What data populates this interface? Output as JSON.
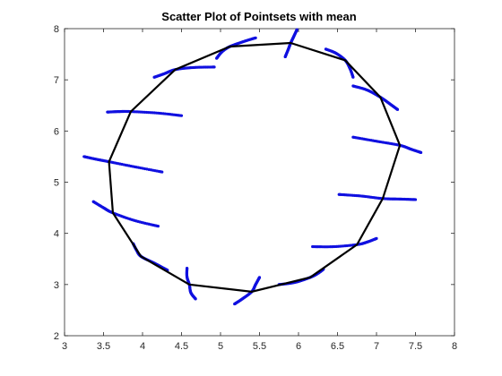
{
  "chart_data": {
    "type": "scatter",
    "title": "Scatter Plot of Pointsets with mean",
    "xlabel": "",
    "ylabel": "",
    "xlim": [
      3,
      8
    ],
    "ylim": [
      2,
      8
    ],
    "x_ticks": [
      3,
      3.5,
      4,
      4.5,
      5,
      5.5,
      6,
      6.5,
      7,
      7.5,
      8
    ],
    "x_tick_labels": [
      "3",
      "3.5",
      "4",
      "4.5",
      "5",
      "5.5",
      "6",
      "6.5",
      "7",
      "7.5",
      "8"
    ],
    "y_ticks": [
      2,
      3,
      4,
      5,
      6,
      7,
      8
    ],
    "y_tick_labels": [
      "2",
      "3",
      "4",
      "5",
      "6",
      "7",
      "8"
    ],
    "grid": false,
    "legend": "none",
    "colors": {
      "points": "#1010e0",
      "mean": "#000000",
      "axis": "#262626"
    },
    "mean_polygon": [
      [
        5.9,
        7.72
      ],
      [
        6.6,
        7.38
      ],
      [
        7.05,
        6.66
      ],
      [
        7.3,
        5.72
      ],
      [
        7.08,
        4.68
      ],
      [
        6.75,
        3.78
      ],
      [
        6.15,
        3.14
      ],
      [
        5.4,
        2.86
      ],
      [
        4.6,
        3.0
      ],
      [
        3.98,
        3.55
      ],
      [
        3.62,
        4.4
      ],
      [
        3.57,
        5.4
      ],
      [
        3.85,
        6.38
      ],
      [
        4.42,
        7.2
      ],
      [
        5.12,
        7.65
      ]
    ],
    "point_clusters": [
      {
        "points": [
          [
            5.83,
            7.45
          ],
          [
            5.87,
            7.6
          ],
          [
            5.9,
            7.72
          ],
          [
            5.94,
            7.85
          ],
          [
            5.98,
            7.98
          ]
        ]
      },
      {
        "points": [
          [
            6.35,
            7.6
          ],
          [
            6.48,
            7.52
          ],
          [
            6.6,
            7.38
          ],
          [
            6.66,
            7.22
          ],
          [
            6.7,
            7.05
          ]
        ]
      },
      {
        "points": [
          [
            6.7,
            6.88
          ],
          [
            6.88,
            6.8
          ],
          [
            7.05,
            6.66
          ],
          [
            7.18,
            6.52
          ],
          [
            7.27,
            6.42
          ]
        ]
      },
      {
        "points": [
          [
            6.7,
            5.88
          ],
          [
            7.0,
            5.8
          ],
          [
            7.3,
            5.72
          ],
          [
            7.45,
            5.64
          ],
          [
            7.57,
            5.58
          ]
        ]
      },
      {
        "points": [
          [
            6.52,
            4.76
          ],
          [
            6.8,
            4.73
          ],
          [
            7.08,
            4.68
          ],
          [
            7.3,
            4.67
          ],
          [
            7.5,
            4.66
          ]
        ]
      },
      {
        "points": [
          [
            6.18,
            3.74
          ],
          [
            6.45,
            3.74
          ],
          [
            6.75,
            3.78
          ],
          [
            6.88,
            3.83
          ],
          [
            7.0,
            3.9
          ]
        ]
      },
      {
        "points": [
          [
            5.75,
            3.0
          ],
          [
            5.95,
            3.04
          ],
          [
            6.15,
            3.14
          ],
          [
            6.25,
            3.22
          ],
          [
            6.32,
            3.3
          ]
        ]
      },
      {
        "points": [
          [
            5.18,
            2.62
          ],
          [
            5.28,
            2.72
          ],
          [
            5.4,
            2.86
          ],
          [
            5.45,
            3.0
          ],
          [
            5.5,
            3.14
          ]
        ]
      },
      {
        "points": [
          [
            4.57,
            3.32
          ],
          [
            4.57,
            3.15
          ],
          [
            4.6,
            3.0
          ],
          [
            4.62,
            2.84
          ],
          [
            4.68,
            2.72
          ]
        ]
      },
      {
        "points": [
          [
            3.88,
            3.8
          ],
          [
            3.92,
            3.68
          ],
          [
            3.98,
            3.55
          ],
          [
            4.15,
            3.42
          ],
          [
            4.32,
            3.28
          ]
        ]
      },
      {
        "points": [
          [
            3.37,
            4.62
          ],
          [
            3.5,
            4.5
          ],
          [
            3.62,
            4.4
          ],
          [
            3.9,
            4.25
          ],
          [
            4.2,
            4.14
          ]
        ]
      },
      {
        "points": [
          [
            3.25,
            5.5
          ],
          [
            3.4,
            5.45
          ],
          [
            3.57,
            5.4
          ],
          [
            3.9,
            5.3
          ],
          [
            4.25,
            5.2
          ]
        ]
      },
      {
        "points": [
          [
            3.55,
            6.37
          ],
          [
            3.7,
            6.38
          ],
          [
            3.85,
            6.38
          ],
          [
            4.2,
            6.35
          ],
          [
            4.5,
            6.3
          ]
        ]
      },
      {
        "points": [
          [
            4.15,
            7.05
          ],
          [
            4.28,
            7.12
          ],
          [
            4.42,
            7.2
          ],
          [
            4.65,
            7.24
          ],
          [
            4.92,
            7.25
          ]
        ]
      },
      {
        "points": [
          [
            4.95,
            7.42
          ],
          [
            5.02,
            7.55
          ],
          [
            5.12,
            7.65
          ],
          [
            5.3,
            7.75
          ],
          [
            5.45,
            7.82
          ]
        ]
      }
    ]
  }
}
